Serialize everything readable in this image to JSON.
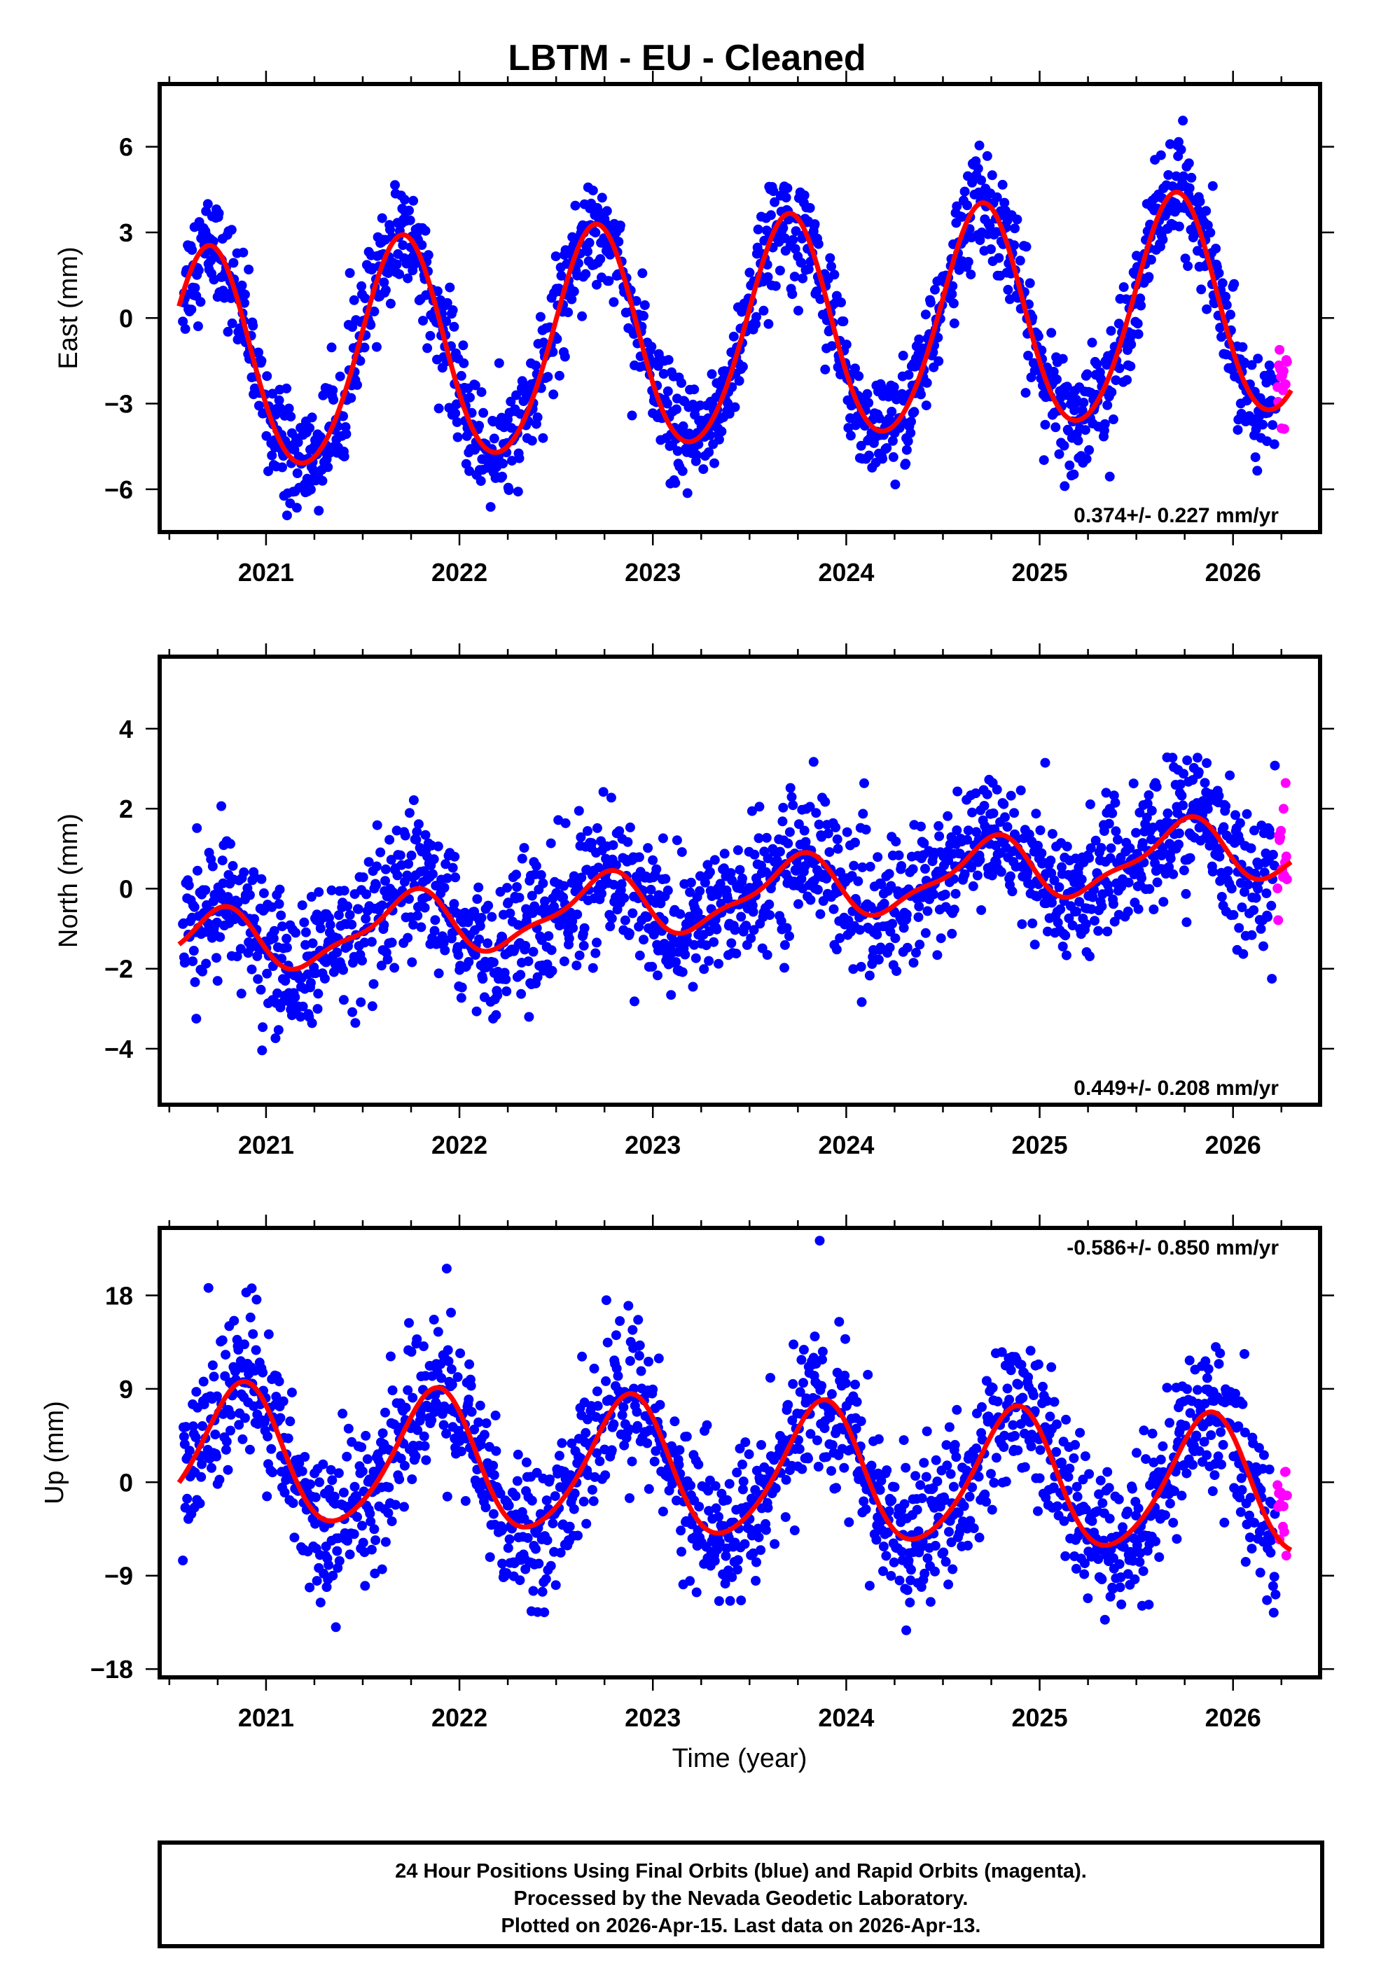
{
  "title": "LBTM  - EU - Cleaned",
  "colors": {
    "final_orbits": "#0000ff",
    "rapid_orbits": "#ff00ff",
    "model": "#ff0000",
    "frame": "#000000"
  },
  "x_axis": {
    "label": "Time (year)",
    "range": [
      2020.45,
      2026.45
    ],
    "major_ticks": [
      2021,
      2022,
      2023,
      2024,
      2025,
      2026
    ],
    "major_tick_labels": [
      "2021",
      "2022",
      "2023",
      "2024",
      "2025",
      "2026"
    ],
    "minor_step": 0.25
  },
  "footer": {
    "lines": [
      "24 Hour Positions Using Final Orbits (blue) and Rapid Orbits (magenta).",
      "Processed by the Nevada Geodetic Laboratory.",
      "Plotted on 2026-Apr-15. Last data on 2026-Apr-13."
    ]
  },
  "chart_data": [
    {
      "type": "scatter",
      "component": "East",
      "ylabel": "East (mm)",
      "ylim": [
        -7.5,
        8.2
      ],
      "y_ticks": [
        -6,
        -3,
        0,
        3,
        6
      ],
      "y_tick_labels": [
        "−6",
        "−3",
        "0",
        "3",
        "6"
      ],
      "rate_text": "0.374+/- 0.227 mm/yr",
      "rate_position": "bottom-right",
      "rate_mm_per_yr": 0.374,
      "rate_sigma": 0.227,
      "seasonal": {
        "offset": -0.6,
        "trend": 0.374,
        "t0": 2023.5,
        "annual_amp": 3.9,
        "annual_phase": 0.45,
        "semi_amp": 0.3,
        "semi_phase": 0.1
      },
      "noise_sd": 0.95,
      "model_range": [
        2020.55,
        2026.3
      ]
    },
    {
      "type": "scatter",
      "component": "North",
      "ylabel": "North (mm)",
      "ylim": [
        -5.4,
        5.8
      ],
      "y_ticks": [
        -4,
        -2,
        0,
        2,
        4
      ],
      "y_tick_labels": [
        "−4",
        "−2",
        "0",
        "2",
        "4"
      ],
      "rate_text": "0.449+/- 0.208 mm/yr",
      "rate_position": "bottom-right",
      "rate_mm_per_yr": 0.449,
      "rate_sigma": 0.208,
      "seasonal": {
        "offset": -0.15,
        "trend": 0.449,
        "t0": 2023.5,
        "annual_amp": 0.75,
        "annual_phase": 0.48,
        "semi_amp": 0.25,
        "semi_phase": 0.2
      },
      "noise_sd": 0.85,
      "model_range": [
        2020.55,
        2026.3
      ]
    },
    {
      "type": "scatter",
      "component": "Up",
      "ylabel": "Up (mm)",
      "ylim": [
        -18.8,
        24.5
      ],
      "y_ticks": [
        -18,
        -9,
        0,
        9,
        18
      ],
      "y_tick_labels": [
        "−18",
        "−9",
        "0",
        "9",
        "18"
      ],
      "rate_text": "-0.586+/- 0.850 mm/yr",
      "rate_position": "top-right",
      "rate_mm_per_yr": -0.586,
      "rate_sigma": 0.85,
      "seasonal": {
        "offset": 1.0,
        "trend": -0.586,
        "t0": 2023.5,
        "annual_amp": 6.5,
        "annual_phase": 0.62,
        "semi_amp": 0.8,
        "semi_phase": 0.3
      },
      "noise_sd": 3.6,
      "model_range": [
        2020.55,
        2026.3
      ]
    }
  ],
  "data_span": {
    "start": 2020.57,
    "final_end": 2026.22,
    "rapid_start": 2026.23,
    "rapid_end": 2026.28
  }
}
